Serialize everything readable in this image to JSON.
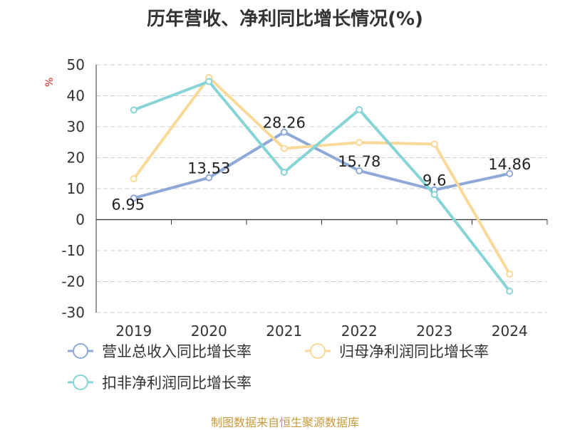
{
  "chart_data": {
    "type": "line",
    "title": "历年营收、净利同比增长情况(%)",
    "ylabel": "%",
    "xlabel": "",
    "categories": [
      "2019",
      "2020",
      "2021",
      "2022",
      "2023",
      "2024"
    ],
    "ylim": [
      -30,
      50
    ],
    "yticks": [
      50,
      40,
      30,
      20,
      10,
      0,
      -10,
      -20,
      -30
    ],
    "grid": true,
    "legend_position": "bottom-left",
    "series": [
      {
        "name": "营业总收入同比增长率",
        "color": "#8ea9d8",
        "values": [
          6.95,
          13.53,
          28.26,
          15.78,
          9.6,
          14.86
        ],
        "labels": [
          "6.95",
          "13.53",
          "28.26",
          "15.78",
          "9.6",
          "14.86"
        ]
      },
      {
        "name": "归母净利润同比增长率",
        "color": "#fad898",
        "values": [
          13.2,
          45.9,
          23.0,
          24.9,
          24.4,
          -17.6
        ]
      },
      {
        "name": "扣非净利润同比增长率",
        "color": "#86d4d6",
        "values": [
          35.4,
          44.6,
          15.3,
          35.5,
          8.1,
          -23.1
        ]
      }
    ]
  },
  "source": "制图数据来自恒生聚源数据库"
}
